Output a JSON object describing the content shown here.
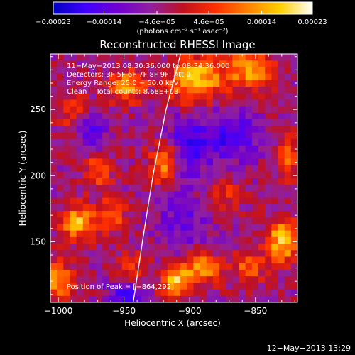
{
  "chart_data": {
    "type": "heatmap",
    "title": "Reconstructed RHESSI Image",
    "xlabel": "Heliocentric X (arcsec)",
    "ylabel": "Heliocentric Y (arcsec)",
    "xlim": [
      -1006,
      -818
    ],
    "ylim": [
      104,
      292
    ],
    "xticks": [
      -1000,
      -950,
      -900,
      -850
    ],
    "yticks": [
      150,
      200,
      250
    ],
    "xtick_labels": [
      "−1000",
      "−950",
      "−900",
      "−850"
    ],
    "ytick_labels": [
      "150",
      "200",
      "250"
    ],
    "colorbar": {
      "range": [
        -0.00023,
        0.00023
      ],
      "ticks": [
        -0.00023,
        -0.00014,
        -4.6e-05,
        4.6e-05,
        0.00014,
        0.00023
      ],
      "tick_labels": [
        "−0.00023",
        "−0.00014",
        "−4.6e−05",
        "4.6e−05",
        "0.00014",
        "0.00023"
      ],
      "unit_label": "(photons cm⁻² s⁻¹ asec⁻²)",
      "colors": [
        "#0000c0",
        "#4000ff",
        "#7000d0",
        "#9020a0",
        "#c01020",
        "#ff3000",
        "#ff8000",
        "#ffd000",
        "#ffffff"
      ]
    },
    "info_lines": [
      "11−May−2013 08:30:36.000 to 08:34:36.000",
      "Detectors: 3F 5F 6F 7F 8F 9F; Att 0",
      "Energy Range: 25.0 − 50.0 keV",
      "Clean    Total counts: 8.68E+03"
    ],
    "peak_label": "Position of Peak = [−864,292]",
    "peak": [
      -864,
      292
    ],
    "limb_curve": [
      [
        -943,
        104
      ],
      [
        -936,
        150
      ],
      [
        -928,
        200
      ],
      [
        -918,
        250
      ],
      [
        -907,
        292
      ]
    ],
    "grid_cols": 38,
    "grid_rows": 38,
    "hotspots": [
      {
        "x": -918,
        "y": 210,
        "amp": 0.0002,
        "sx": 8,
        "sy": 12
      },
      {
        "x": -895,
        "y": 272,
        "amp": 0.00022,
        "sx": 14,
        "sy": 12
      },
      {
        "x": -855,
        "y": 280,
        "amp": 0.00018,
        "sx": 12,
        "sy": 10
      },
      {
        "x": -948,
        "y": 268,
        "amp": 0.00017,
        "sx": 10,
        "sy": 8
      },
      {
        "x": -970,
        "y": 205,
        "amp": 0.00012,
        "sx": 8,
        "sy": 10
      },
      {
        "x": -985,
        "y": 165,
        "amp": 0.0002,
        "sx": 9,
        "sy": 9
      },
      {
        "x": -960,
        "y": 170,
        "amp": 0.00014,
        "sx": 7,
        "sy": 8
      },
      {
        "x": -1000,
        "y": 120,
        "amp": 0.00018,
        "sx": 8,
        "sy": 10
      },
      {
        "x": -890,
        "y": 130,
        "amp": 0.00016,
        "sx": 10,
        "sy": 8
      },
      {
        "x": -910,
        "y": 120,
        "amp": 0.00019,
        "sx": 8,
        "sy": 8
      },
      {
        "x": -830,
        "y": 150,
        "amp": 0.0002,
        "sx": 9,
        "sy": 12
      },
      {
        "x": -855,
        "y": 130,
        "amp": 0.00012,
        "sx": 8,
        "sy": 8
      },
      {
        "x": -825,
        "y": 215,
        "amp": 0.00013,
        "sx": 6,
        "sy": 12
      },
      {
        "x": -875,
        "y": 185,
        "amp": 8e-05,
        "sx": 10,
        "sy": 10
      },
      {
        "x": -990,
        "y": 250,
        "amp": 9e-05,
        "sx": 8,
        "sy": 10
      },
      {
        "x": -945,
        "y": 130,
        "amp": 0.0001,
        "sx": 8,
        "sy": 8
      }
    ],
    "coldspots": [
      {
        "x": -905,
        "y": 220,
        "amp": -0.00012,
        "sx": 12,
        "sy": 18
      },
      {
        "x": -870,
        "y": 230,
        "amp": -0.00012,
        "sx": 16,
        "sy": 14
      },
      {
        "x": -975,
        "y": 230,
        "amp": -0.0001,
        "sx": 8,
        "sy": 12
      },
      {
        "x": -950,
        "y": 110,
        "amp": -0.00014,
        "sx": 8,
        "sy": 8
      },
      {
        "x": -905,
        "y": 165,
        "amp": -8e-05,
        "sx": 14,
        "sy": 14
      }
    ]
  },
  "footer": {
    "date_label": "12−May−2013 13:29"
  }
}
